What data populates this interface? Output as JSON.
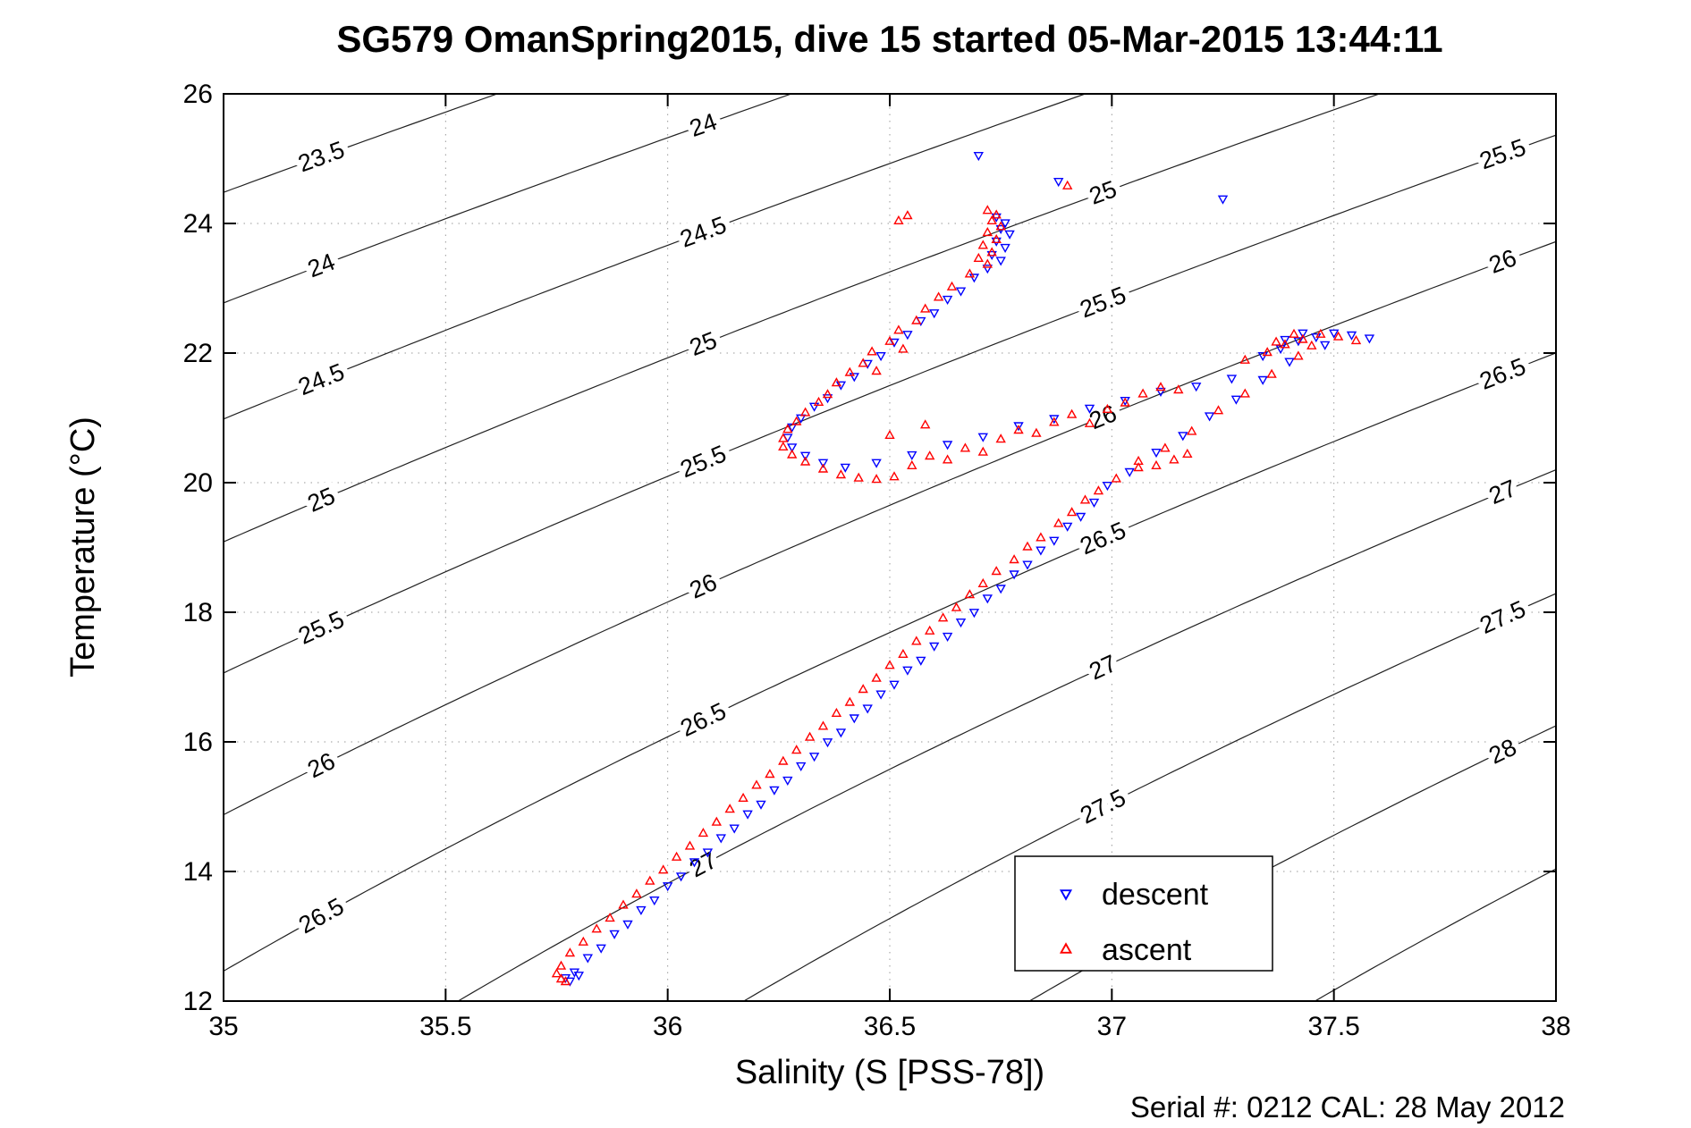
{
  "title": "SG579 OmanSpring2015, dive 15 started 05-Mar-2015 13:44:11",
  "annotation": "Serial #: 0212  CAL: 28 May 2012",
  "legend": {
    "items": [
      {
        "label": "descent",
        "marker": "triangle-down",
        "color": "#0000ff"
      },
      {
        "label": "ascent",
        "marker": "triangle-up",
        "color": "#ff0000"
      }
    ]
  },
  "chart_data": {
    "type": "scatter",
    "title": "SG579 OmanSpring2015, dive 15 started 05-Mar-2015 13:44:11",
    "xlabel": "Salinity (S [PSS-78])",
    "ylabel": "Temperature (°C)",
    "xlim": [
      35,
      38
    ],
    "ylim": [
      12,
      26
    ],
    "xticks": [
      35,
      35.5,
      36,
      36.5,
      37,
      37.5,
      38
    ],
    "xtick_labels": [
      "35",
      "35.5",
      "36",
      "36.5",
      "37",
      "37.5",
      "38"
    ],
    "yticks": [
      12,
      14,
      16,
      18,
      20,
      22,
      24,
      26
    ],
    "ytick_labels": [
      "12",
      "14",
      "16",
      "18",
      "20",
      "22",
      "24",
      "26"
    ],
    "grid": "dotted",
    "legend_position": "inside-lower-right",
    "contours": {
      "variable": "sigma-t density isopycnals (kg/m^3)",
      "levels": [
        23,
        23.5,
        24,
        24.5,
        25,
        25.5,
        26,
        26.5,
        27,
        27.5,
        28,
        28.5
      ],
      "labeled_levels": [
        23.5,
        24,
        24.5,
        25,
        25.5,
        26,
        26.5,
        27,
        27.5,
        28
      ],
      "label_anchor_salinities": [
        35.22,
        36.08,
        36.98,
        37.88
      ],
      "color": "#222222"
    },
    "series": [
      {
        "name": "descent",
        "marker": "triangle-down",
        "color": "#0000ff",
        "points": [
          [
            36.7,
            25.05
          ],
          [
            36.88,
            24.65
          ],
          [
            37.25,
            24.38
          ],
          [
            36.74,
            24.1
          ],
          [
            36.76,
            24.01
          ],
          [
            36.75,
            23.92
          ],
          [
            36.77,
            23.84
          ],
          [
            36.74,
            23.73
          ],
          [
            36.76,
            23.63
          ],
          [
            36.73,
            23.52
          ],
          [
            36.75,
            23.43
          ],
          [
            36.72,
            23.31
          ],
          [
            36.69,
            23.17
          ],
          [
            36.66,
            22.96
          ],
          [
            36.63,
            22.83
          ],
          [
            36.6,
            22.62
          ],
          [
            36.57,
            22.5
          ],
          [
            36.54,
            22.29
          ],
          [
            36.51,
            22.17
          ],
          [
            36.48,
            21.96
          ],
          [
            36.45,
            21.84
          ],
          [
            36.42,
            21.64
          ],
          [
            36.39,
            21.51
          ],
          [
            36.36,
            21.31
          ],
          [
            36.33,
            21.18
          ],
          [
            36.3,
            21.0
          ],
          [
            36.28,
            20.86
          ],
          [
            36.27,
            20.7
          ],
          [
            36.28,
            20.55
          ],
          [
            36.31,
            20.42
          ],
          [
            36.35,
            20.31
          ],
          [
            36.4,
            20.24
          ],
          [
            36.47,
            20.31
          ],
          [
            36.55,
            20.43
          ],
          [
            36.63,
            20.59
          ],
          [
            36.71,
            20.71
          ],
          [
            36.79,
            20.88
          ],
          [
            36.87,
            20.99
          ],
          [
            36.95,
            21.15
          ],
          [
            37.03,
            21.27
          ],
          [
            37.11,
            21.41
          ],
          [
            37.19,
            21.49
          ],
          [
            37.27,
            21.61
          ],
          [
            37.34,
            21.96
          ],
          [
            37.38,
            22.07
          ],
          [
            37.42,
            22.19
          ],
          [
            37.46,
            22.25
          ],
          [
            37.5,
            22.31
          ],
          [
            37.54,
            22.28
          ],
          [
            37.58,
            22.23
          ],
          [
            37.48,
            22.13
          ],
          [
            37.43,
            22.31
          ],
          [
            37.39,
            22.21
          ],
          [
            37.4,
            21.87
          ],
          [
            37.34,
            21.59
          ],
          [
            37.28,
            21.29
          ],
          [
            37.22,
            21.03
          ],
          [
            37.16,
            20.73
          ],
          [
            37.1,
            20.47
          ],
          [
            37.04,
            20.17
          ],
          [
            36.99,
            19.96
          ],
          [
            36.96,
            19.7
          ],
          [
            36.93,
            19.48
          ],
          [
            36.9,
            19.33
          ],
          [
            36.87,
            19.11
          ],
          [
            36.84,
            18.96
          ],
          [
            36.81,
            18.74
          ],
          [
            36.78,
            18.59
          ],
          [
            36.75,
            18.37
          ],
          [
            36.72,
            18.22
          ],
          [
            36.69,
            18.0
          ],
          [
            36.66,
            17.85
          ],
          [
            36.63,
            17.63
          ],
          [
            36.6,
            17.48
          ],
          [
            36.57,
            17.26
          ],
          [
            36.54,
            17.11
          ],
          [
            36.51,
            16.89
          ],
          [
            36.48,
            16.74
          ],
          [
            36.45,
            16.52
          ],
          [
            36.42,
            16.37
          ],
          [
            36.39,
            16.15
          ],
          [
            36.36,
            16.0
          ],
          [
            36.33,
            15.78
          ],
          [
            36.3,
            15.63
          ],
          [
            36.27,
            15.41
          ],
          [
            36.24,
            15.26
          ],
          [
            36.21,
            15.04
          ],
          [
            36.18,
            14.89
          ],
          [
            36.15,
            14.67
          ],
          [
            36.12,
            14.52
          ],
          [
            36.09,
            14.3
          ],
          [
            36.06,
            14.15
          ],
          [
            36.03,
            13.93
          ],
          [
            36.0,
            13.78
          ],
          [
            35.97,
            13.56
          ],
          [
            35.94,
            13.41
          ],
          [
            35.91,
            13.19
          ],
          [
            35.88,
            13.04
          ],
          [
            35.85,
            12.82
          ],
          [
            35.82,
            12.67
          ],
          [
            35.79,
            12.45
          ],
          [
            35.77,
            12.36
          ],
          [
            35.78,
            12.31
          ],
          [
            35.8,
            12.4
          ]
        ]
      },
      {
        "name": "ascent",
        "marker": "triangle-up",
        "color": "#ff0000",
        "points": [
          [
            36.54,
            24.12
          ],
          [
            36.52,
            24.04
          ],
          [
            36.9,
            24.58
          ],
          [
            36.72,
            24.2
          ],
          [
            36.74,
            24.13
          ],
          [
            36.73,
            24.04
          ],
          [
            36.75,
            23.95
          ],
          [
            36.72,
            23.86
          ],
          [
            36.74,
            23.75
          ],
          [
            36.71,
            23.66
          ],
          [
            36.73,
            23.55
          ],
          [
            36.7,
            23.46
          ],
          [
            36.72,
            23.37
          ],
          [
            36.68,
            23.22
          ],
          [
            36.64,
            23.02
          ],
          [
            36.61,
            22.86
          ],
          [
            36.58,
            22.68
          ],
          [
            36.56,
            22.5
          ],
          [
            36.52,
            22.35
          ],
          [
            36.5,
            22.18
          ],
          [
            36.46,
            22.02
          ],
          [
            36.44,
            21.84
          ],
          [
            36.41,
            21.7
          ],
          [
            36.38,
            21.54
          ],
          [
            36.36,
            21.36
          ],
          [
            36.34,
            21.24
          ],
          [
            36.31,
            21.08
          ],
          [
            36.29,
            20.94
          ],
          [
            36.47,
            21.72
          ],
          [
            36.53,
            22.06
          ],
          [
            36.27,
            20.82
          ],
          [
            36.26,
            20.68
          ],
          [
            36.26,
            20.55
          ],
          [
            36.28,
            20.43
          ],
          [
            36.31,
            20.32
          ],
          [
            36.35,
            20.21
          ],
          [
            36.39,
            20.12
          ],
          [
            36.43,
            20.07
          ],
          [
            36.47,
            20.05
          ],
          [
            36.51,
            20.09
          ],
          [
            36.55,
            20.26
          ],
          [
            36.59,
            20.41
          ],
          [
            36.63,
            20.35
          ],
          [
            36.67,
            20.53
          ],
          [
            36.71,
            20.47
          ],
          [
            36.75,
            20.67
          ],
          [
            36.79,
            20.81
          ],
          [
            36.83,
            20.76
          ],
          [
            36.87,
            20.93
          ],
          [
            36.91,
            21.05
          ],
          [
            36.95,
            20.91
          ],
          [
            36.99,
            21.13
          ],
          [
            37.03,
            21.23
          ],
          [
            37.07,
            21.37
          ],
          [
            37.11,
            21.47
          ],
          [
            37.15,
            21.43
          ],
          [
            36.5,
            20.73
          ],
          [
            36.58,
            20.89
          ],
          [
            37.06,
            20.33
          ],
          [
            37.1,
            20.26
          ],
          [
            37.14,
            20.35
          ],
          [
            37.17,
            20.44
          ],
          [
            37.3,
            21.89
          ],
          [
            37.35,
            22.01
          ],
          [
            37.39,
            22.13
          ],
          [
            37.43,
            22.21
          ],
          [
            37.47,
            22.29
          ],
          [
            37.51,
            22.25
          ],
          [
            37.55,
            22.19
          ],
          [
            37.45,
            22.11
          ],
          [
            37.41,
            22.29
          ],
          [
            37.37,
            22.17
          ],
          [
            37.42,
            21.95
          ],
          [
            37.36,
            21.67
          ],
          [
            37.3,
            21.37
          ],
          [
            37.24,
            21.11
          ],
          [
            37.18,
            20.79
          ],
          [
            37.12,
            20.53
          ],
          [
            37.06,
            20.23
          ],
          [
            37.01,
            20.06
          ],
          [
            36.97,
            19.87
          ],
          [
            36.94,
            19.73
          ],
          [
            36.91,
            19.54
          ],
          [
            36.88,
            19.37
          ],
          [
            36.84,
            19.15
          ],
          [
            36.81,
            19.01
          ],
          [
            36.78,
            18.81
          ],
          [
            36.74,
            18.63
          ],
          [
            36.71,
            18.44
          ],
          [
            36.68,
            18.27
          ],
          [
            36.65,
            18.07
          ],
          [
            36.62,
            17.91
          ],
          [
            36.59,
            17.71
          ],
          [
            36.56,
            17.55
          ],
          [
            36.53,
            17.35
          ],
          [
            36.5,
            17.18
          ],
          [
            36.47,
            16.98
          ],
          [
            36.44,
            16.81
          ],
          [
            36.41,
            16.61
          ],
          [
            36.38,
            16.44
          ],
          [
            36.35,
            16.24
          ],
          [
            36.32,
            16.07
          ],
          [
            36.29,
            15.87
          ],
          [
            36.26,
            15.7
          ],
          [
            36.23,
            15.5
          ],
          [
            36.2,
            15.33
          ],
          [
            36.17,
            15.13
          ],
          [
            36.14,
            14.96
          ],
          [
            36.11,
            14.76
          ],
          [
            36.08,
            14.59
          ],
          [
            36.05,
            14.39
          ],
          [
            36.02,
            14.22
          ],
          [
            35.99,
            14.02
          ],
          [
            35.96,
            13.85
          ],
          [
            35.93,
            13.65
          ],
          [
            35.9,
            13.48
          ],
          [
            35.87,
            13.28
          ],
          [
            35.84,
            13.11
          ],
          [
            35.81,
            12.91
          ],
          [
            35.78,
            12.74
          ],
          [
            35.76,
            12.54
          ],
          [
            35.75,
            12.42
          ],
          [
            35.76,
            12.34
          ],
          [
            35.77,
            12.3
          ]
        ]
      }
    ]
  }
}
